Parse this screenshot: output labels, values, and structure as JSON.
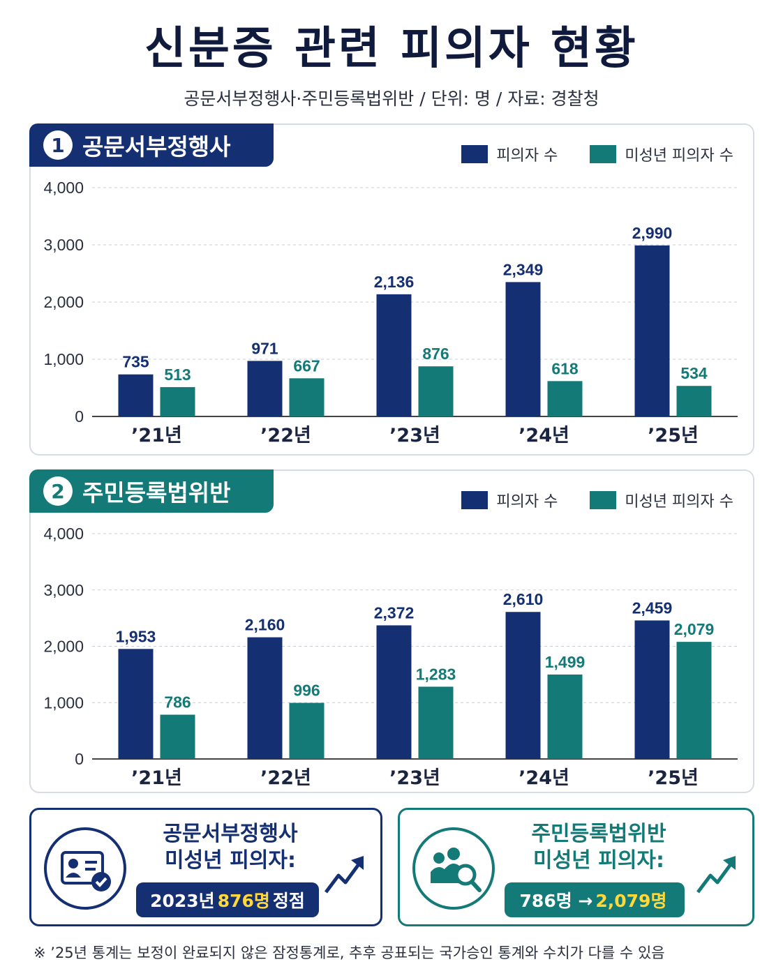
{
  "header": {
    "title": "신분증 관련 피의자 현황",
    "subtitle": "공문서부정행사·주민등록법위반 / 단위: 명 / 자료: 경찰청"
  },
  "colors": {
    "navy": "#142f72",
    "teal": "#137a78",
    "highlight": "#ffd83a"
  },
  "legend": {
    "suspects": "피의자 수",
    "minors": "미성년 피의자 수"
  },
  "chart_data": [
    {
      "type": "bar",
      "number": "1",
      "title": "공문서부정행사",
      "categories": [
        "’21년",
        "’22년",
        "’23년",
        "’24년",
        "’25년"
      ],
      "series": [
        {
          "name": "피의자 수",
          "values": [
            735,
            971,
            2136,
            2349,
            2990
          ],
          "labels": [
            "735",
            "971",
            "2,136",
            "2,349",
            "2,990"
          ],
          "color": "#142f72"
        },
        {
          "name": "미성년 피의자 수",
          "values": [
            513,
            667,
            876,
            618,
            534
          ],
          "labels": [
            "513",
            "667",
            "876",
            "618",
            "534"
          ],
          "color": "#137a78"
        }
      ],
      "yticks": [
        "0",
        "1,000",
        "2,000",
        "3,000",
        "4,000"
      ],
      "ylim": [
        0,
        4000
      ],
      "grid": true,
      "legend_position": "top-right"
    },
    {
      "type": "bar",
      "number": "2",
      "title": "주민등록법위반",
      "categories": [
        "’21년",
        "’22년",
        "’23년",
        "’24년",
        "’25년"
      ],
      "series": [
        {
          "name": "피의자 수",
          "values": [
            1953,
            2160,
            2372,
            2610,
            2459
          ],
          "labels": [
            "1,953",
            "2,160",
            "2,372",
            "2,610",
            "2,459"
          ],
          "color": "#142f72"
        },
        {
          "name": "미성년 피의자 수",
          "values": [
            786,
            996,
            1283,
            1499,
            2079
          ],
          "labels": [
            "786",
            "996",
            "1,283",
            "1,499",
            "2,079"
          ],
          "color": "#137a78"
        }
      ],
      "yticks": [
        "0",
        "1,000",
        "2,000",
        "3,000",
        "4,000"
      ],
      "ylim": [
        0,
        4000
      ],
      "grid": true,
      "legend_position": "top-right"
    }
  ],
  "cards": [
    {
      "title_line1": "공문서부정행사",
      "title_line2": "미성년 피의자:",
      "pill_pre": "2023년",
      "pill_highlight": "876명",
      "pill_post": "정점",
      "icon": "id-card-check-icon",
      "trend_icon": "trend-up-arrow-icon"
    },
    {
      "title_line1": "주민등록법위반",
      "title_line2": "미성년 피의자:",
      "pill_pre": "786명 →",
      "pill_highlight": "2,079명",
      "pill_post": "",
      "icon": "people-search-icon",
      "trend_icon": "trend-up-arrow-icon"
    }
  ],
  "footnote": "※ ’25년 통계는 보정이 완료되지 않은 잠정통계로, 추후 공표되는 국가승인 통계와 수치가 다를 수 있음"
}
